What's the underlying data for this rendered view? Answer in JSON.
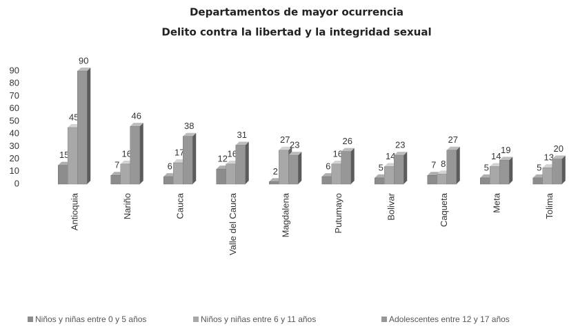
{
  "chart_data": {
    "type": "bar3d",
    "title": "Departamentos de mayor ocurrencia",
    "subtitle": "Delito contra la libertad y la integridad sexual",
    "categories": [
      "Antioquia",
      "Nariño",
      "Cauca",
      "Valle del Cauca",
      "Magdalena",
      "Putumayo",
      "Bolivar",
      "Caqueta",
      "Meta",
      "Tolima"
    ],
    "series": [
      {
        "name": "Niños y niñas entre 0 y 5 años",
        "color": "#8c8c8c",
        "values": [
          15,
          7,
          6,
          12,
          2,
          6,
          5,
          7,
          5,
          5
        ]
      },
      {
        "name": "Niños y niñas entre 6 y 11 años",
        "color": "#a8a8a8",
        "values": [
          45,
          16,
          17,
          16,
          27,
          16,
          14,
          8,
          14,
          13
        ]
      },
      {
        "name": "Adolescentes entre 12 y 17 años",
        "color": "#979797",
        "values": [
          90,
          46,
          38,
          31,
          23,
          26,
          23,
          27,
          19,
          20
        ]
      }
    ],
    "ylim": [
      0,
      90
    ],
    "yticks": [
      0,
      10,
      20,
      30,
      40,
      50,
      60,
      70,
      80,
      90
    ],
    "legend": "bottom"
  }
}
